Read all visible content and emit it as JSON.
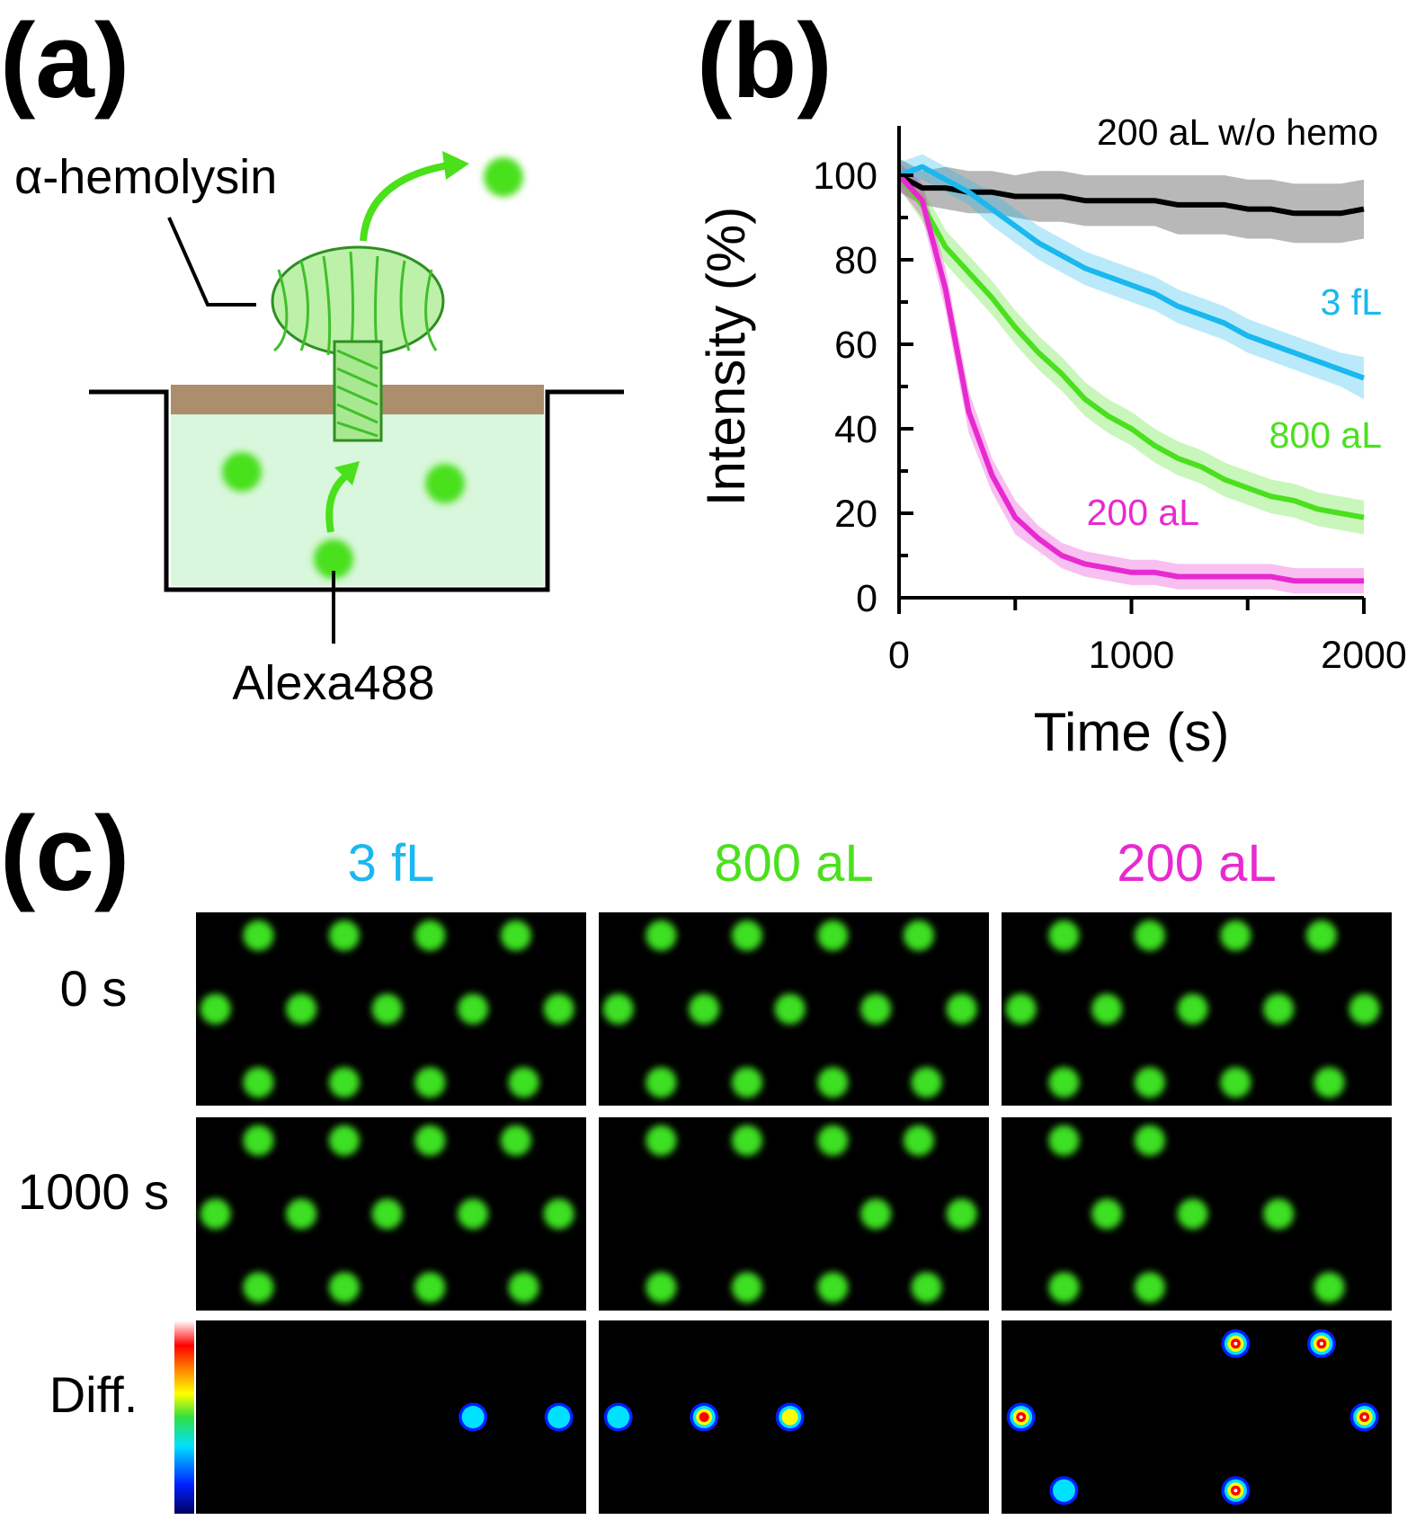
{
  "panel_labels": [
    "(a)",
    "(b)",
    "(c)"
  ],
  "diagram": {
    "labels": [
      "α-hemolysin",
      "Alexa488"
    ]
  },
  "chart_data": {
    "type": "line",
    "xlabel": "Time (s)",
    "ylabel": "Intensity (%)",
    "x": [
      0,
      100,
      200,
      300,
      400,
      500,
      600,
      700,
      800,
      900,
      1000,
      1100,
      1200,
      1300,
      1400,
      1500,
      1600,
      1700,
      1800,
      1900,
      2000
    ],
    "series": [
      {
        "name": "200 aL w/o hemo",
        "color": "#000000",
        "values": [
          100,
          97,
          97,
          96,
          96,
          95,
          95,
          95,
          94,
          94,
          94,
          94,
          93,
          93,
          93,
          92,
          92,
          91,
          91,
          91,
          92
        ],
        "error": [
          4,
          4,
          5,
          5,
          5,
          5,
          6,
          6,
          6,
          6,
          6,
          6,
          7,
          7,
          7,
          7,
          7,
          7,
          7,
          7,
          7
        ]
      },
      {
        "name": "3 fL",
        "color": "#1ab8ee",
        "values": [
          100,
          102,
          99,
          96,
          92,
          88,
          84,
          81,
          78,
          76,
          74,
          72,
          69,
          67,
          65,
          62,
          60,
          58,
          56,
          54,
          52
        ],
        "error": [
          3,
          3,
          3,
          3,
          4,
          4,
          4,
          4,
          4,
          4,
          4,
          4,
          4,
          4,
          4,
          4,
          4,
          4,
          4,
          4,
          5
        ]
      },
      {
        "name": "800 aL",
        "color": "#4be01e",
        "values": [
          100,
          93,
          83,
          77,
          71,
          64,
          58,
          53,
          47,
          43,
          40,
          36,
          33,
          31,
          28,
          26,
          24,
          23,
          21,
          20,
          19
        ],
        "error": [
          3,
          4,
          4,
          4,
          4,
          4,
          4,
          4,
          4,
          4,
          4,
          4,
          4,
          4,
          4,
          4,
          4,
          4,
          4,
          4,
          4
        ]
      },
      {
        "name": "200 aL",
        "color": "#e72ad0",
        "values": [
          100,
          94,
          73,
          44,
          29,
          19,
          14,
          10,
          8,
          7,
          6,
          6,
          5,
          5,
          5,
          5,
          5,
          4,
          4,
          4,
          4
        ],
        "error": [
          3,
          4,
          5,
          5,
          4,
          4,
          3,
          3,
          3,
          3,
          3,
          3,
          3,
          3,
          3,
          3,
          3,
          3,
          3,
          3,
          3
        ]
      }
    ],
    "xlim": [
      0,
      2000
    ],
    "ylim": [
      0,
      110
    ],
    "xticks": [
      0,
      1000,
      2000
    ],
    "yticks": [
      0,
      20,
      40,
      60,
      80,
      100
    ],
    "xminorticks": [
      500,
      1500
    ],
    "yminorticks": [
      10,
      30,
      50,
      70,
      90
    ]
  },
  "micrographs": {
    "columns": [
      {
        "label": "3 fL",
        "color": "#1ab8ee"
      },
      {
        "label": "800 aL",
        "color": "#4be01e"
      },
      {
        "label": "200 aL",
        "color": "#e72ad0"
      }
    ],
    "rows": [
      "0 s",
      "1000 s",
      "Diff."
    ]
  }
}
